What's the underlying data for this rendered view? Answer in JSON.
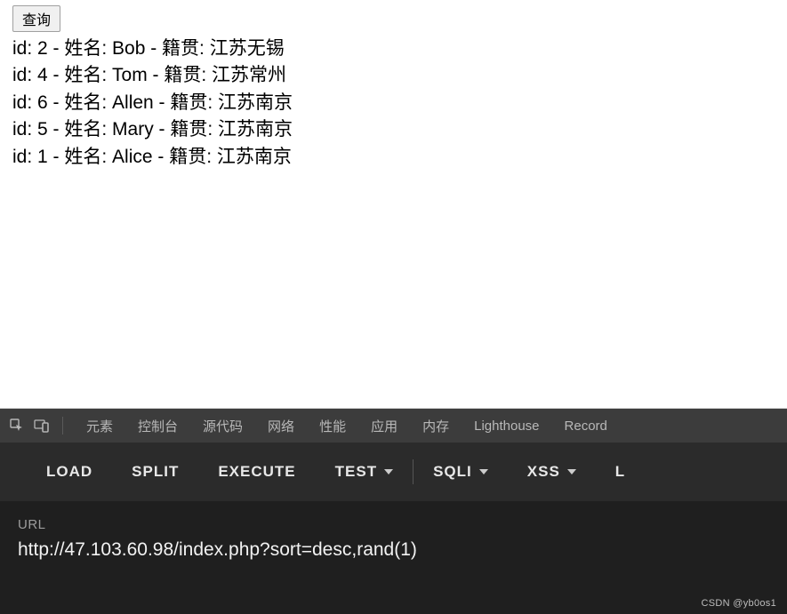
{
  "page": {
    "query_button_label": "查询",
    "results": [
      {
        "id": 2,
        "name": "Bob",
        "origin": "江苏无锡"
      },
      {
        "id": 4,
        "name": "Tom",
        "origin": "江苏常州"
      },
      {
        "id": 6,
        "name": "Allen",
        "origin": "江苏南京"
      },
      {
        "id": 5,
        "name": "Mary",
        "origin": "江苏南京"
      },
      {
        "id": 1,
        "name": "Alice",
        "origin": "江苏南京"
      }
    ],
    "field_labels": {
      "id": "id",
      "name": "姓名",
      "origin": "籍贯"
    },
    "separator": " - "
  },
  "devtools": {
    "tabs": [
      "元素",
      "控制台",
      "源代码",
      "网络",
      "性能",
      "应用",
      "内存",
      "Lighthouse",
      "Record"
    ],
    "colors": {
      "bg": "#3c3c3c",
      "text": "#b8b8b8"
    }
  },
  "extension": {
    "actions": [
      {
        "label": "LOAD",
        "dropdown": false
      },
      {
        "label": "SPLIT",
        "dropdown": false
      },
      {
        "label": "EXECUTE",
        "dropdown": false
      },
      {
        "label": "TEST",
        "dropdown": true
      },
      {
        "label": "SQLI",
        "dropdown": true,
        "sep_before": true
      },
      {
        "label": "XSS",
        "dropdown": true
      },
      {
        "label": "L",
        "dropdown": false
      }
    ],
    "colors": {
      "bg": "#2b2b2b",
      "text": "#e8e8e8"
    }
  },
  "url_panel": {
    "label": "URL",
    "value": "http://47.103.60.98/index.php?sort=desc,rand(1)",
    "colors": {
      "bg": "#1f1f1f",
      "label": "#9c9c9c",
      "value": "#f2f2f2"
    }
  },
  "watermark": "CSDN @yb0os1"
}
